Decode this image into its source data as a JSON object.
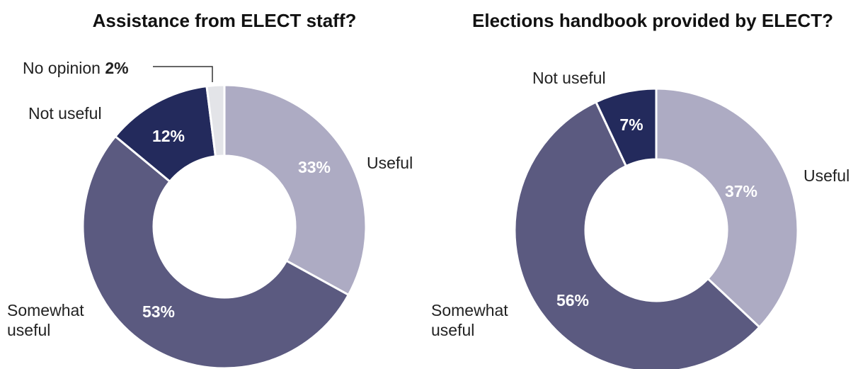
{
  "chart_data": [
    {
      "type": "pie",
      "title": "Assistance from ELECT staff?",
      "slices": [
        {
          "label": "Useful",
          "value": 33,
          "value_label": "33%",
          "color": "#adabc3"
        },
        {
          "label": "Somewhat useful",
          "label_lines": [
            "Somewhat",
            "useful"
          ],
          "value": 53,
          "value_label": "53%",
          "color": "#5b5a80"
        },
        {
          "label": "Not useful",
          "value": 12,
          "value_label": "12%",
          "color": "#232a5c"
        },
        {
          "label": "No opinion",
          "value": 2,
          "value_label": "2%",
          "color": "#e3e4e8"
        }
      ]
    },
    {
      "type": "pie",
      "title": "Elections handbook provided by ELECT?",
      "slices": [
        {
          "label": "Useful",
          "value": 37,
          "value_label": "37%",
          "color": "#adabc3"
        },
        {
          "label": "Somewhat useful",
          "label_lines": [
            "Somewhat",
            "useful"
          ],
          "value": 56,
          "value_label": "56%",
          "color": "#5b5a80"
        },
        {
          "label": "Not useful",
          "value": 7,
          "value_label": "7%",
          "color": "#232a5c"
        }
      ]
    }
  ]
}
